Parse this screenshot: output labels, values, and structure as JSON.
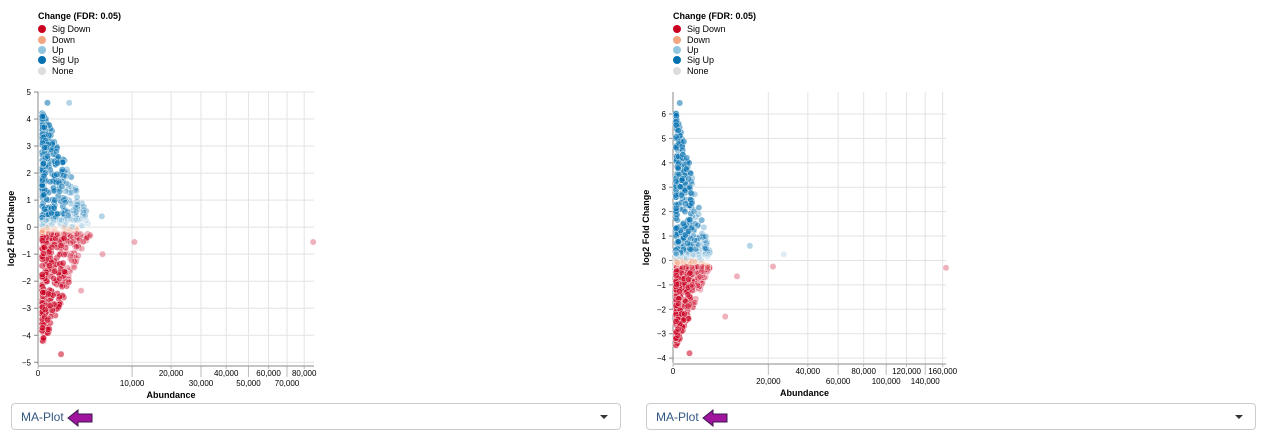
{
  "legend": {
    "title": "Change (FDR: 0.05)",
    "items": [
      {
        "label": "Sig Down",
        "color": "#ca0020"
      },
      {
        "label": "Down",
        "color": "#f4a582"
      },
      {
        "label": "Up",
        "color": "#92c5de"
      },
      {
        "label": "Sig Up",
        "color": "#0571b0"
      },
      {
        "label": "None",
        "color": "#dddddd"
      }
    ]
  },
  "chart_data": [
    {
      "type": "scatter",
      "title": "",
      "xlabel": "Abundance",
      "ylabel": "log2 Fold Change",
      "xscale": "sqrt",
      "xlim": [
        0,
        86000
      ],
      "ylim": [
        -5.1,
        5
      ],
      "xticks": [
        "0",
        "10,000",
        "20,000",
        "30,000",
        "40,000",
        "50,000",
        "60,000",
        "70,000",
        "80,000"
      ],
      "xtick_values": [
        0,
        10000,
        20000,
        30000,
        40000,
        50000,
        60000,
        70000,
        80000
      ],
      "yticks": [
        -5,
        -4,
        -3,
        -2,
        -1,
        0,
        1,
        2,
        3,
        4,
        5
      ],
      "grid": true,
      "max_abs_up": 4.6,
      "max_abs_down": -4.7,
      "notable_points": [
        [
          10500,
          -0.55
        ],
        [
          85500,
          -0.55
        ],
        [
          4700,
          -1.0
        ],
        [
          4600,
          0.4
        ],
        [
          1100,
          4.6
        ],
        [
          2100,
          -2.35
        ]
      ],
      "seed": 7
    },
    {
      "type": "scatter",
      "title": "",
      "xlabel": "Abundance",
      "ylabel": "log2 Fold Change",
      "xscale": "sqrt",
      "xlim": [
        0,
        164000
      ],
      "ylim": [
        -4.2,
        6.9
      ],
      "xticks": [
        "0",
        "20,000",
        "40,000",
        "60,000",
        "80,000",
        "100,000",
        "120,000",
        "140,000",
        "160,000"
      ],
      "xtick_values": [
        0,
        20000,
        40000,
        60000,
        80000,
        100000,
        120000,
        140000,
        160000
      ],
      "yticks": [
        -4,
        -3,
        -2,
        -1,
        0,
        1,
        2,
        3,
        4,
        5,
        6
      ],
      "grid": true,
      "max_abs_up": 6.45,
      "max_abs_down": -3.8,
      "notable_points": [
        [
          27000,
          0.25
        ],
        [
          22000,
          -0.25
        ],
        [
          164000,
          -0.3
        ],
        [
          9000,
          -0.65
        ],
        [
          6000,
          -2.3
        ],
        [
          13000,
          0.6
        ]
      ],
      "seed": 13
    }
  ],
  "dropdowns": [
    {
      "value": "MA-Plot"
    },
    {
      "value": "MA-Plot"
    }
  ]
}
